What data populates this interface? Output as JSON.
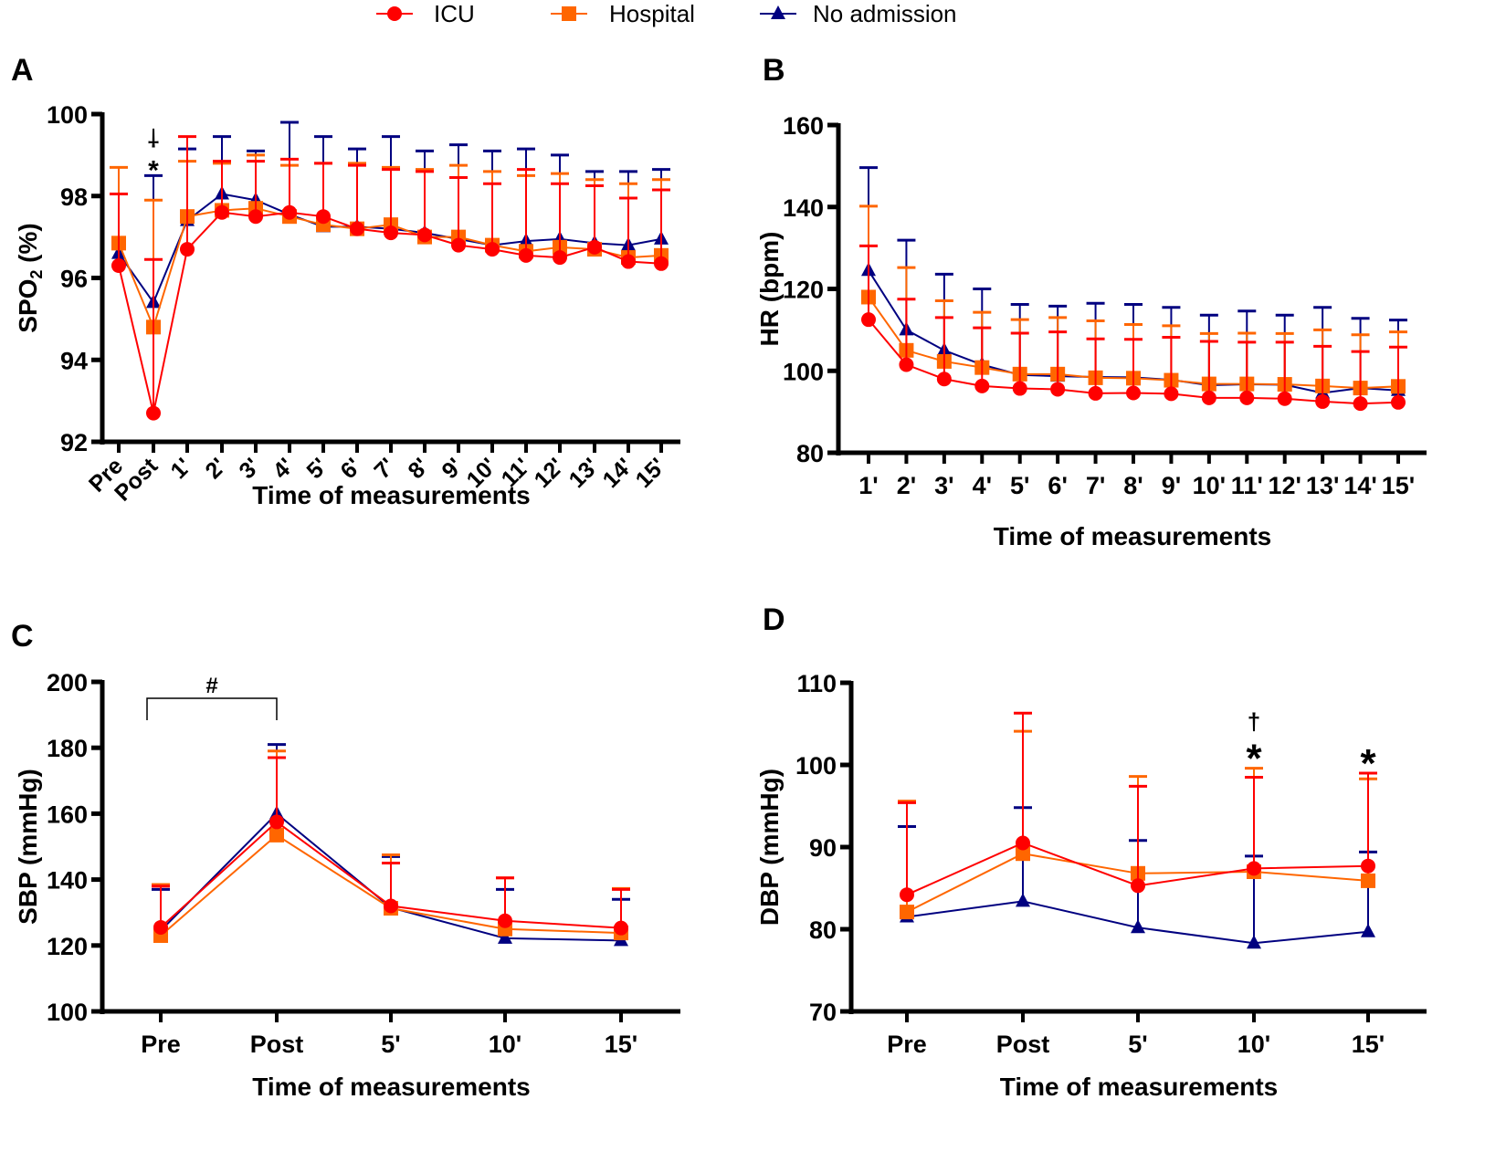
{
  "legend": {
    "position": "top",
    "items": [
      {
        "name": "ICU",
        "color": "#ff0000",
        "marker": "circle"
      },
      {
        "name": "Hospital",
        "color": "#ff6600",
        "marker": "square"
      },
      {
        "name": "No admission",
        "color": "#000080",
        "marker": "triangle"
      }
    ]
  },
  "chart_data": [
    {
      "panel": "A",
      "type": "line",
      "xlabel": "Time of measurements",
      "ylabel": "SPO2 (%)",
      "ylim": [
        92,
        100
      ],
      "yticks": [
        92,
        94,
        96,
        98,
        100
      ],
      "grid": false,
      "error_bars": "upper",
      "categories": [
        "Pre",
        "Post",
        "1'",
        "2'",
        "3'",
        "4'",
        "5'",
        "6'",
        "7'",
        "8'",
        "9'",
        "10'",
        "11'",
        "12'",
        "13'",
        "14'",
        "15'"
      ],
      "series": [
        {
          "name": "ICU",
          "values": [
            96.3,
            92.7,
            96.7,
            97.6,
            97.5,
            97.6,
            97.5,
            97.2,
            97.1,
            97.05,
            96.8,
            96.7,
            96.55,
            96.5,
            96.75,
            96.4,
            96.35
          ],
          "error_upper": [
            98.05,
            96.45,
            99.45,
            98.85,
            98.85,
            98.9,
            98.8,
            98.75,
            98.65,
            98.6,
            98.45,
            98.3,
            98.65,
            98.3,
            98.25,
            97.95,
            98.15
          ]
        },
        {
          "name": "Hospital",
          "values": [
            96.85,
            94.8,
            97.5,
            97.65,
            97.7,
            97.5,
            97.3,
            97.2,
            97.3,
            97.0,
            97.0,
            96.8,
            96.65,
            96.75,
            96.7,
            96.5,
            96.55
          ],
          "error_upper": [
            98.7,
            97.9,
            98.85,
            98.8,
            99.0,
            98.75,
            98.8,
            98.8,
            98.7,
            98.65,
            98.75,
            98.6,
            98.5,
            98.55,
            98.4,
            98.3,
            98.4
          ]
        },
        {
          "name": "No admission",
          "values": [
            96.6,
            95.4,
            97.4,
            98.05,
            97.9,
            97.55,
            97.25,
            97.25,
            97.2,
            97.1,
            96.95,
            96.8,
            96.9,
            96.95,
            96.85,
            96.8,
            96.95
          ],
          "error_upper": [
            null,
            98.5,
            99.15,
            99.45,
            99.1,
            99.8,
            99.45,
            99.15,
            99.45,
            99.1,
            99.25,
            99.1,
            99.15,
            99.0,
            98.6,
            98.6,
            98.65
          ]
        }
      ],
      "annotations": [
        {
          "category": "Post",
          "symbols": [
            "†",
            "*"
          ]
        }
      ]
    },
    {
      "panel": "B",
      "type": "line",
      "xlabel": "Time of measurements",
      "ylabel": "HR (bpm)",
      "ylim": [
        80,
        160
      ],
      "yticks": [
        80,
        100,
        120,
        140,
        160
      ],
      "grid": false,
      "error_bars": "upper",
      "categories": [
        "1'",
        "2'",
        "3'",
        "4'",
        "5'",
        "6'",
        "7'",
        "8'",
        "9'",
        "10'",
        "11'",
        "12'",
        "13'",
        "14'",
        "15'"
      ],
      "series": [
        {
          "name": "ICU",
          "values": [
            112.5,
            101.5,
            98,
            96.3,
            95.7,
            95.5,
            94.5,
            94.6,
            94.4,
            93.4,
            93.4,
            93.2,
            92.5,
            92,
            92.3
          ],
          "error_upper": [
            130.5,
            117.5,
            113,
            110.5,
            109.2,
            109.5,
            107.8,
            107.7,
            108.2,
            107.2,
            107,
            107,
            106,
            104.7,
            105.8
          ]
        },
        {
          "name": "Hospital",
          "values": [
            118,
            105,
            102.3,
            100.8,
            99.2,
            99.2,
            98.3,
            98.2,
            97.7,
            96.8,
            96.8,
            96.7,
            96.3,
            95.8,
            96.2
          ],
          "error_upper": [
            140.2,
            125.2,
            117.1,
            114.3,
            112.5,
            113,
            112.2,
            111.3,
            111,
            109.1,
            109.2,
            109.1,
            110,
            108.8,
            109.5
          ]
        },
        {
          "name": "No admission",
          "values": [
            124.5,
            110,
            105,
            101.5,
            99,
            98.7,
            98.5,
            98.4,
            97.8,
            96.5,
            96.7,
            96.6,
            94.6,
            95.8,
            95.2
          ],
          "error_upper": [
            149.6,
            131.9,
            123.6,
            120,
            116.2,
            115.8,
            116.5,
            116.2,
            115.5,
            113.6,
            114.6,
            113.6,
            115.5,
            112.8,
            112.4
          ]
        }
      ],
      "annotations": []
    },
    {
      "panel": "C",
      "type": "line",
      "xlabel": "Time of measurements",
      "ylabel": "SBP (mmHg)",
      "ylim": [
        100,
        200
      ],
      "yticks": [
        100,
        120,
        140,
        160,
        180,
        200
      ],
      "grid": false,
      "error_bars": "upper",
      "categories": [
        "Pre",
        "Post",
        "5'",
        "10'",
        "15'"
      ],
      "series": [
        {
          "name": "ICU",
          "values": [
            125.5,
            157.5,
            132,
            127.5,
            125.3
          ],
          "error_upper": [
            138,
            177,
            145,
            140.5,
            137
          ]
        },
        {
          "name": "Hospital",
          "values": [
            123,
            153.5,
            131.3,
            125,
            123.8
          ],
          "error_upper": [
            138.5,
            179,
            147.5,
            140.5,
            137.3
          ]
        },
        {
          "name": "No admission",
          "values": [
            124.5,
            160,
            131.5,
            122.2,
            121.5
          ],
          "error_upper": [
            137,
            181,
            147,
            137,
            134
          ]
        }
      ],
      "annotations": [],
      "brackets": [
        {
          "from": "Pre",
          "to": "Post",
          "symbol": "#"
        }
      ]
    },
    {
      "panel": "D",
      "type": "line",
      "xlabel": "Time of measurements",
      "ylabel": "DBP (mmHg)",
      "ylim": [
        70,
        110
      ],
      "yticks": [
        70,
        80,
        90,
        100,
        110
      ],
      "grid": false,
      "error_bars": "upper",
      "categories": [
        "Pre",
        "Post",
        "5'",
        "10'",
        "15'"
      ],
      "series": [
        {
          "name": "ICU",
          "values": [
            84.2,
            90.5,
            85.3,
            87.4,
            87.7
          ],
          "error_upper": [
            95.4,
            106.3,
            97.4,
            98.5,
            99
          ]
        },
        {
          "name": "Hospital",
          "values": [
            82.1,
            89.2,
            86.8,
            87,
            85.9
          ],
          "error_upper": [
            95.6,
            104.1,
            98.6,
            99.6,
            98.3
          ]
        },
        {
          "name": "No admission",
          "values": [
            81.5,
            83.4,
            80.2,
            78.3,
            79.7
          ],
          "error_upper": [
            92.5,
            94.8,
            90.8,
            88.9,
            89.4
          ]
        }
      ],
      "annotations": [
        {
          "category": "10'",
          "symbols": [
            "†",
            "*"
          ]
        },
        {
          "category": "15'",
          "symbols": [
            "*"
          ]
        }
      ]
    }
  ]
}
